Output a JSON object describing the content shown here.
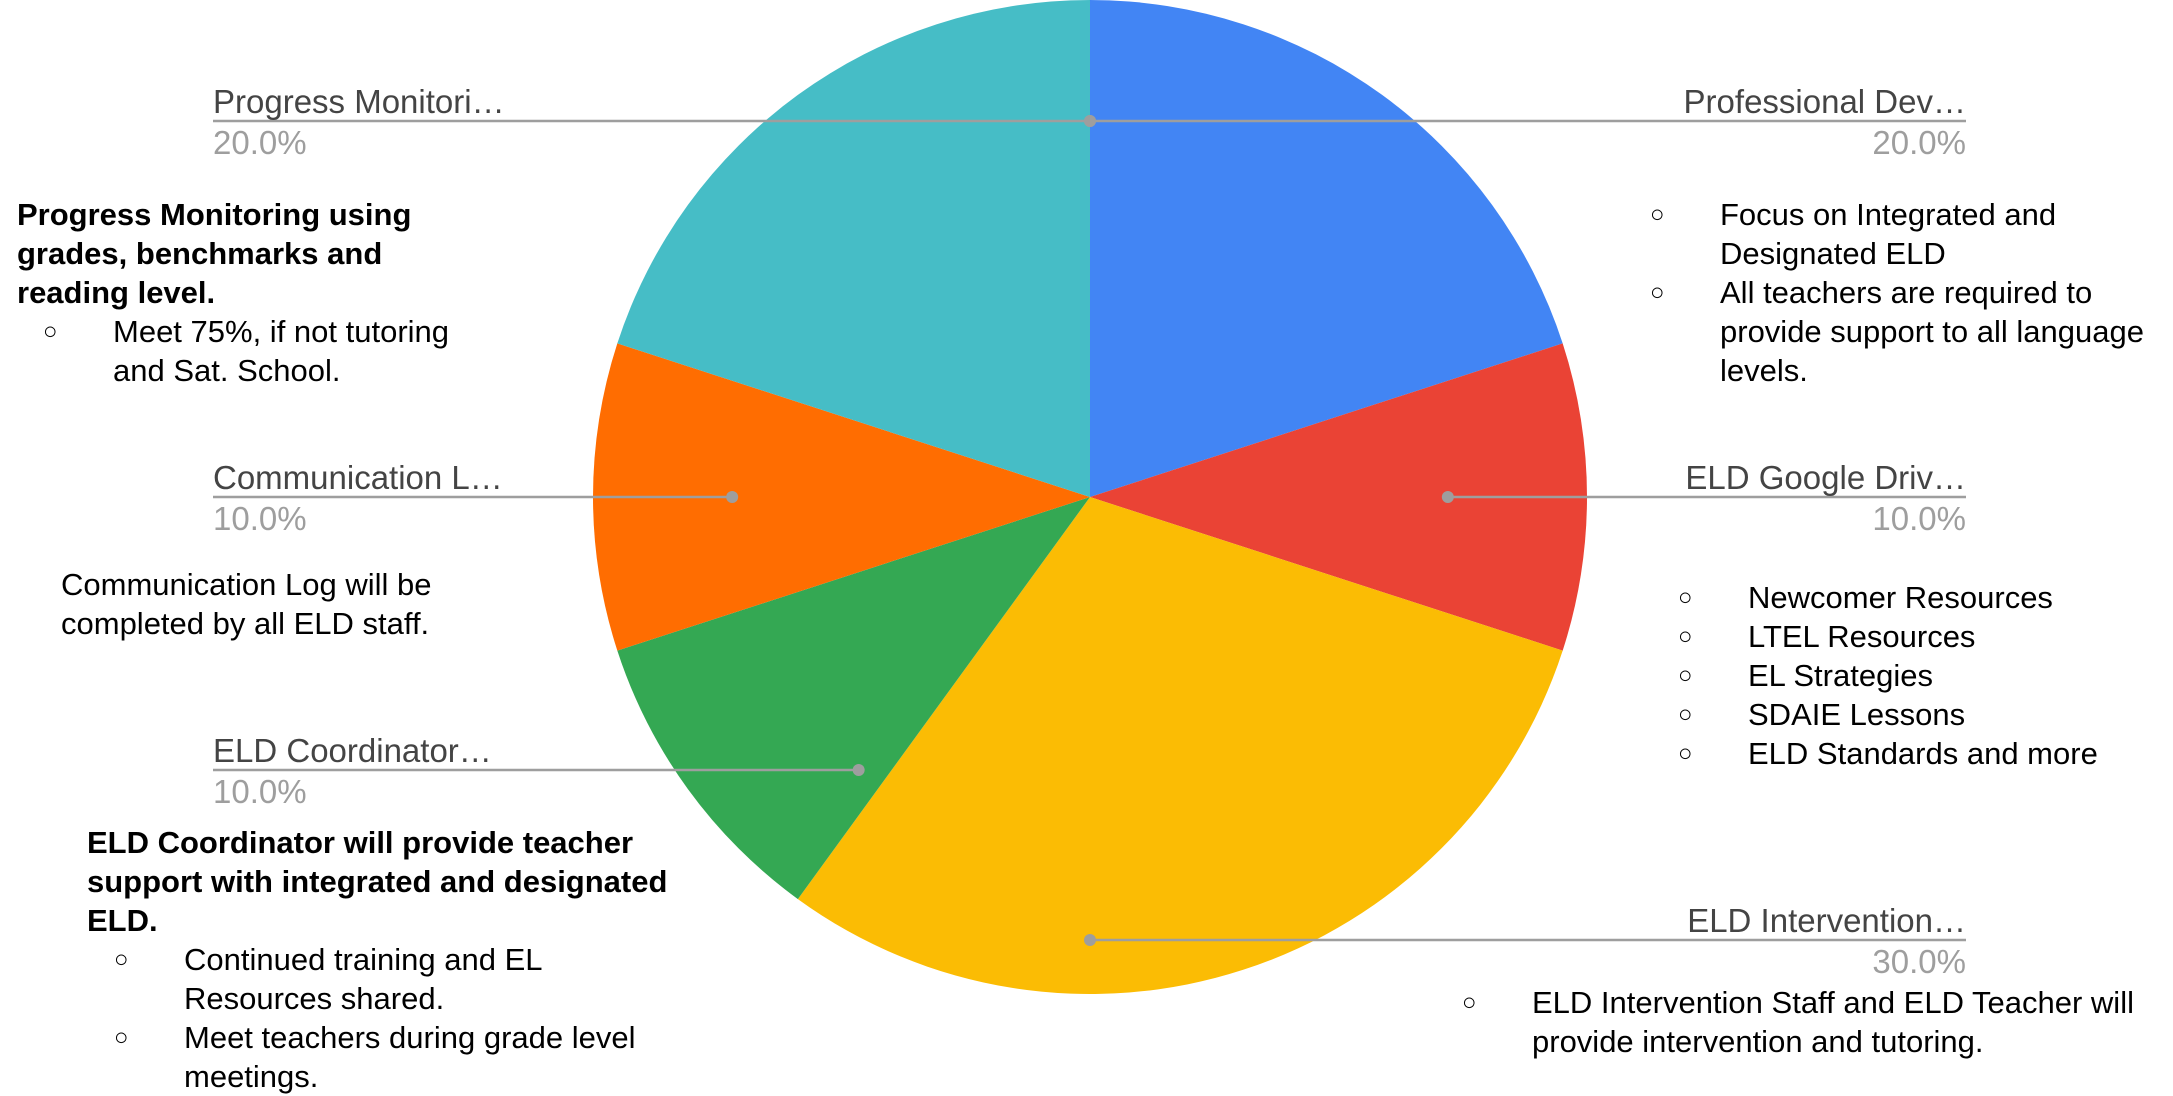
{
  "chart_data": {
    "type": "pie",
    "colors_hex": [
      "#4285f4",
      "#ea4335",
      "#fbbc04",
      "#34a853",
      "#ff6d01",
      "#46bdc6"
    ],
    "slices": [
      {
        "label": "Professional Dev…",
        "value": 20.0,
        "percent_label": "20.0%",
        "color": "#4285f4"
      },
      {
        "label": "ELD Google Driv…",
        "value": 10.0,
        "percent_label": "10.0%",
        "color": "#ea4335"
      },
      {
        "label": "ELD Intervention…",
        "value": 30.0,
        "percent_label": "30.0%",
        "color": "#fbbc04"
      },
      {
        "label": "ELD Coordinator…",
        "value": 10.0,
        "percent_label": "10.0%",
        "color": "#34a853"
      },
      {
        "label": "Communication L…",
        "value": 10.0,
        "percent_label": "10.0%",
        "color": "#ff6d01"
      },
      {
        "label": "Progress Monitori…",
        "value": 20.0,
        "percent_label": "20.0%",
        "color": "#46bdc6"
      }
    ],
    "leader_line_color": "#9e9e9e"
  },
  "notes": {
    "progress": {
      "heading": "Progress Monitoring using grades, benchmarks and reading level.",
      "bullet_symbol": "○",
      "items": [
        "Meet 75%, if not tutoring and Sat. School."
      ]
    },
    "communication": {
      "text": "Communication Log will be completed by all ELD staff."
    },
    "coordinator": {
      "heading": "ELD Coordinator will provide teacher support with integrated and designated ELD.",
      "bullet_symbol": "○",
      "items": [
        "Continued training and EL Resources shared.",
        "Meet teachers during grade level meetings."
      ]
    },
    "professional": {
      "bullet_symbol": "○",
      "items": [
        "Focus on Integrated and Designated ELD",
        "All teachers are required to provide support to all language levels."
      ]
    },
    "google_drive": {
      "bullet_symbol": "○",
      "items": [
        "Newcomer Resources",
        "LTEL Resources",
        "EL Strategies",
        "SDAIE Lessons",
        "ELD Standards and more"
      ]
    },
    "intervention": {
      "bullet_symbol": "○",
      "items": [
        "ELD Intervention Staff and ELD Teacher will provide intervention and tutoring."
      ]
    }
  }
}
